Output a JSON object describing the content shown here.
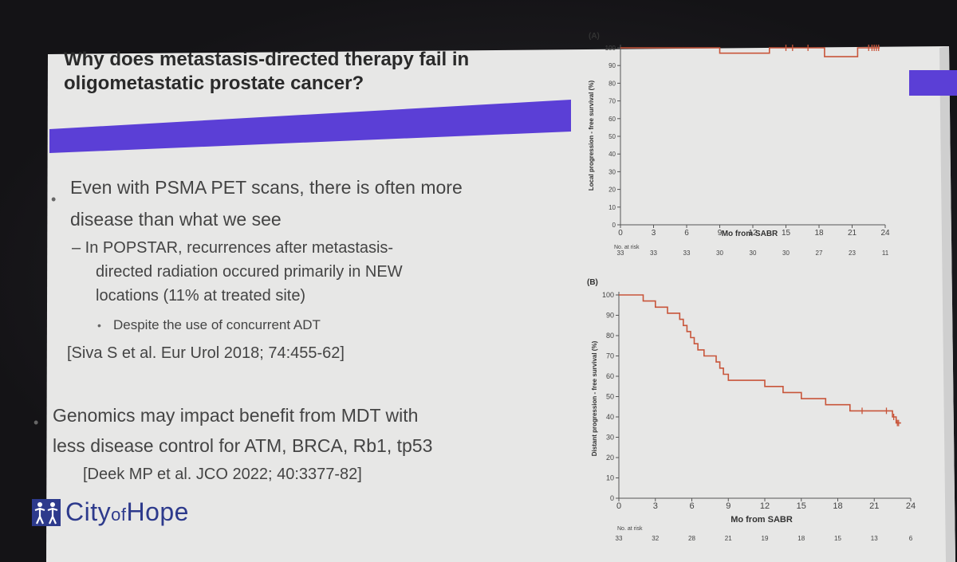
{
  "slide": {
    "title_lines": [
      "Why does metastasis-directed therapy fail in",
      "oligometastatic prostate cancer?"
    ],
    "bullets": {
      "b1_line1": "Even with PSMA PET scans, there is often more",
      "b1_line2": "disease than what we see",
      "b2_line1": "– In POPSTAR, recurrences after metastasis-",
      "b2_line2": "directed radiation occured primarily in NEW",
      "b2_line3": "locations (11% at treated site)",
      "b3": "Despite the use of concurrent ADT",
      "ref1": "[Siva S et al. Eur Urol 2018; 74:455-62]",
      "b4_line1": "Genomics may impact benefit from MDT with",
      "b4_line2": "less disease control for ATM, BRCA, Rb1, tp53",
      "ref2": "[Deek MP et al. JCO 2022; 40:3377-82]"
    },
    "logo": {
      "city": "City",
      "of": "of",
      "hope": "Hope"
    },
    "colors": {
      "accent_bar": "#5b3fd6",
      "curve": "#c8553a",
      "logo": "#2d3a8c"
    }
  },
  "chart_data": [
    {
      "type": "line",
      "panel_label": "(A)",
      "xlabel": "Mo from SABR",
      "ylabel": "Local progression - free survival (%)",
      "x_ticks": [
        "0",
        "3",
        "6",
        "9",
        "12",
        "15",
        "18",
        "21",
        "24"
      ],
      "y_ticks": [
        "0",
        "10",
        "20",
        "30",
        "40",
        "50",
        "60",
        "70",
        "80",
        "90",
        "100"
      ],
      "xlim": [
        0,
        24
      ],
      "ylim": [
        0,
        100
      ],
      "at_risk_label": "No. at risk",
      "at_risk": [
        "33",
        "33",
        "33",
        "30",
        "30",
        "30",
        "27",
        "23",
        "11"
      ],
      "series": [
        {
          "x": [
            0,
            9,
            9,
            13.5,
            13.5,
            18.5,
            18.5,
            21.5,
            21.5,
            23.5
          ],
          "y": [
            100,
            100,
            97,
            97,
            100,
            100,
            95,
            95,
            100,
            100
          ],
          "censored_x": [
            15,
            15.6,
            17,
            22.5,
            22.8,
            23,
            23.2,
            23.4
          ]
        }
      ]
    },
    {
      "type": "line",
      "panel_label": "(B)",
      "xlabel": "Mo from SABR",
      "ylabel": "Distant progression - free survival (%)",
      "x_ticks": [
        "0",
        "3",
        "6",
        "9",
        "12",
        "15",
        "18",
        "21",
        "24"
      ],
      "y_ticks": [
        "0",
        "10",
        "20",
        "30",
        "40",
        "50",
        "60",
        "70",
        "80",
        "90",
        "100"
      ],
      "xlim": [
        0,
        24
      ],
      "ylim": [
        0,
        100
      ],
      "at_risk_label": "No. at risk",
      "at_risk": [
        "33",
        "32",
        "28",
        "21",
        "19",
        "18",
        "15",
        "13",
        "6"
      ],
      "series": [
        {
          "x": [
            0,
            2,
            2,
            3,
            3,
            4,
            4,
            5,
            5,
            5.3,
            5.3,
            5.6,
            5.6,
            5.9,
            5.9,
            6.2,
            6.2,
            6.5,
            6.5,
            7,
            7,
            8,
            8,
            8.3,
            8.3,
            8.6,
            8.6,
            9,
            9,
            12,
            12,
            13.5,
            13.5,
            15,
            15,
            17,
            17,
            19,
            19,
            22.5,
            22.5,
            22.8,
            22.8,
            23.2
          ],
          "y": [
            100,
            100,
            97,
            97,
            94,
            94,
            91,
            91,
            88,
            88,
            85,
            85,
            82,
            82,
            79,
            79,
            76,
            76,
            73,
            73,
            70,
            70,
            67,
            67,
            64,
            64,
            61,
            61,
            58,
            58,
            55,
            55,
            52,
            52,
            49,
            49,
            46,
            46,
            43,
            43,
            40,
            40,
            37,
            37
          ],
          "censored_x": [
            20,
            22,
            22.6,
            22.9,
            23
          ]
        }
      ]
    }
  ]
}
